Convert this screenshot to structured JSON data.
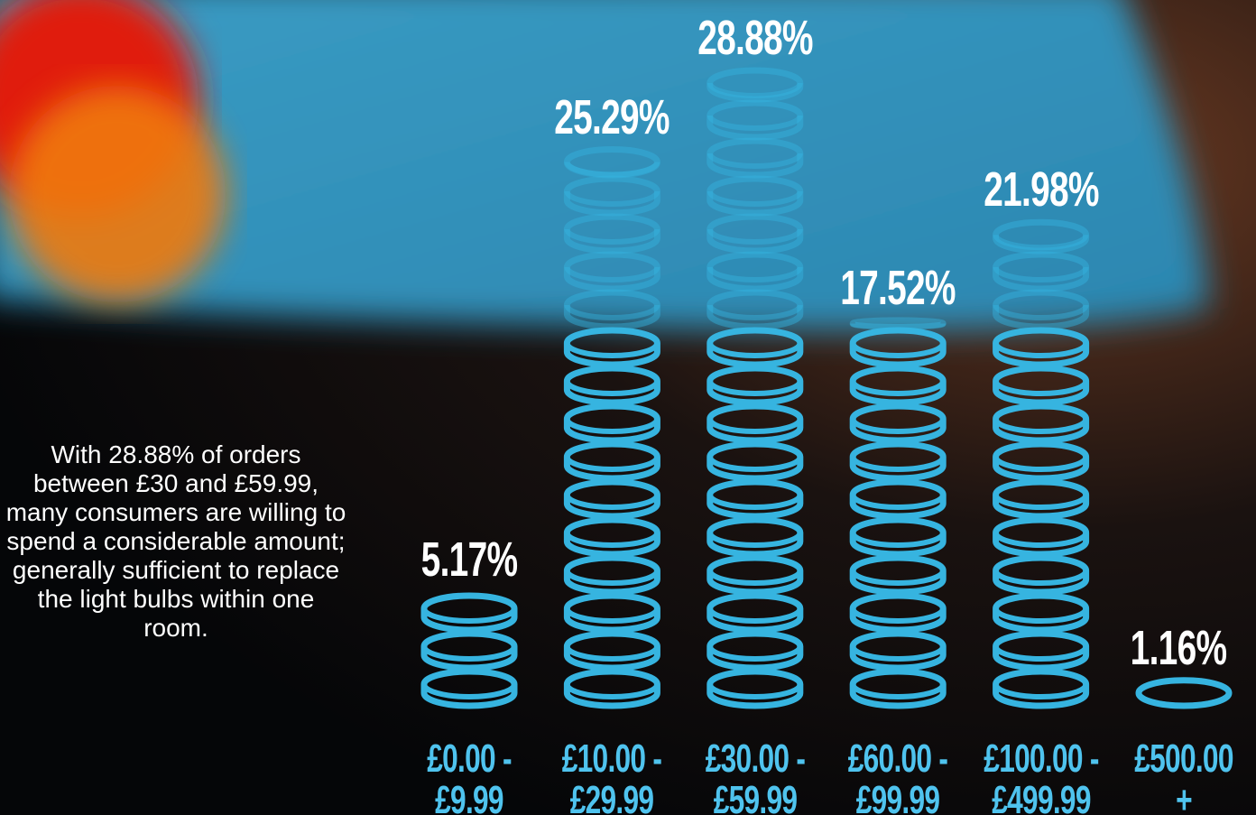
{
  "chart_data": {
    "type": "pictograph",
    "annotation": "With 28.88% of orders between £30 and £59.99, many consumers are willing to spend a considerable amount; generally sufficient to replace the light bulbs within one room.",
    "categories": [
      "£0.00 -\n£9.99",
      "£10.00 -\n£29.99",
      "£30.00 -\n£59.99",
      "£60.00 -\n£99.99",
      "£100.00 -\n£499.99",
      "£500.00\n+"
    ],
    "values": [
      5.17,
      25.29,
      28.88,
      17.52,
      21.98,
      1.16
    ],
    "value_labels": [
      "5.17%",
      "25.29%",
      "28.88%",
      "17.52%",
      "21.98%",
      "1.16%"
    ],
    "color": "#36b4e0"
  }
}
